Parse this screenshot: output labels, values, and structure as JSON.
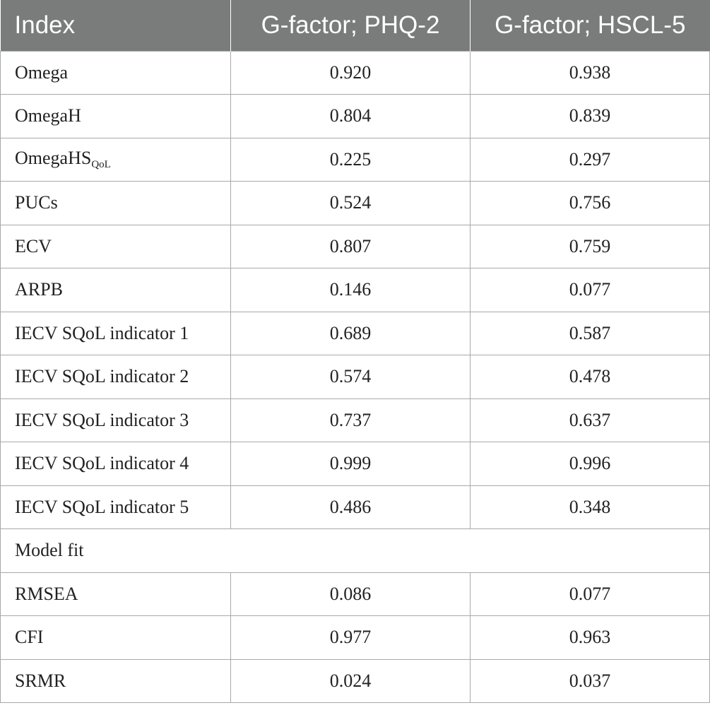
{
  "table": {
    "headers": [
      "Index",
      "G-factor; PHQ-2",
      "G-factor; HSCL-5"
    ],
    "rows": [
      {
        "label": "Omega",
        "phq2": "0.920",
        "hscl5": "0.938"
      },
      {
        "label": "OmegaH",
        "phq2": "0.804",
        "hscl5": "0.839"
      },
      {
        "label": "OmegaHS",
        "label_sub": "QoL",
        "phq2": "0.225",
        "hscl5": "0.297"
      },
      {
        "label": "PUCs",
        "phq2": "0.524",
        "hscl5": "0.756"
      },
      {
        "label": "ECV",
        "phq2": "0.807",
        "hscl5": "0.759"
      },
      {
        "label": "ARPB",
        "phq2": "0.146",
        "hscl5": "0.077"
      },
      {
        "label": "IECV SQoL indicator 1",
        "phq2": "0.689",
        "hscl5": "0.587"
      },
      {
        "label": "IECV SQoL indicator 2",
        "phq2": "0.574",
        "hscl5": "0.478"
      },
      {
        "label": "IECV SQoL indicator 3",
        "phq2": "0.737",
        "hscl5": "0.637"
      },
      {
        "label": "IECV SQoL indicator 4",
        "phq2": "0.999",
        "hscl5": "0.996"
      },
      {
        "label": "IECV SQoL indicator 5",
        "phq2": "0.486",
        "hscl5": "0.348"
      }
    ],
    "section_label": "Model fit",
    "fit_rows": [
      {
        "label": "RMSEA",
        "phq2": "0.086",
        "hscl5": "0.077"
      },
      {
        "label": "CFI",
        "phq2": "0.977",
        "hscl5": "0.963"
      },
      {
        "label": "SRMR",
        "phq2": "0.024",
        "hscl5": "0.037"
      }
    ]
  },
  "colors": {
    "header_bg": "#7a7c7b",
    "header_text": "#ffffff",
    "border": "#a7a9a8",
    "text": "#222222"
  }
}
